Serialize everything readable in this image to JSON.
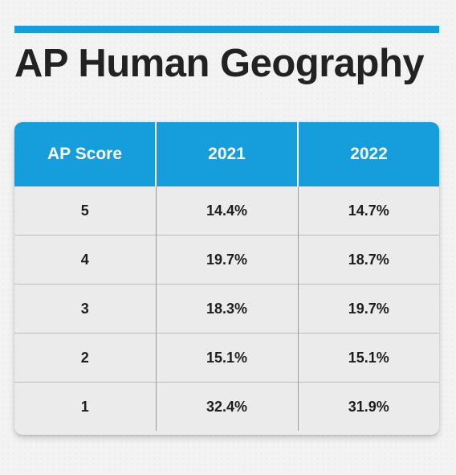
{
  "title": {
    "bold_part": "AP",
    "regular_part": "Human Geography"
  },
  "colors": {
    "accent": "#159ddc",
    "background": "#f3f3f3",
    "card": "#ebebeb",
    "text": "#222222"
  },
  "chart_data": {
    "type": "table",
    "title": "AP Human Geography",
    "columns": [
      "AP Score",
      "2021",
      "2022"
    ],
    "rows": [
      {
        "score": "5",
        "y2021": "14.4%",
        "y2022": "14.7%"
      },
      {
        "score": "4",
        "y2021": "19.7%",
        "y2022": "18.7%"
      },
      {
        "score": "3",
        "y2021": "18.3%",
        "y2022": "19.7%"
      },
      {
        "score": "2",
        "y2021": "15.1%",
        "y2022": "15.1%"
      },
      {
        "score": "1",
        "y2021": "32.4%",
        "y2022": "31.9%"
      }
    ]
  }
}
